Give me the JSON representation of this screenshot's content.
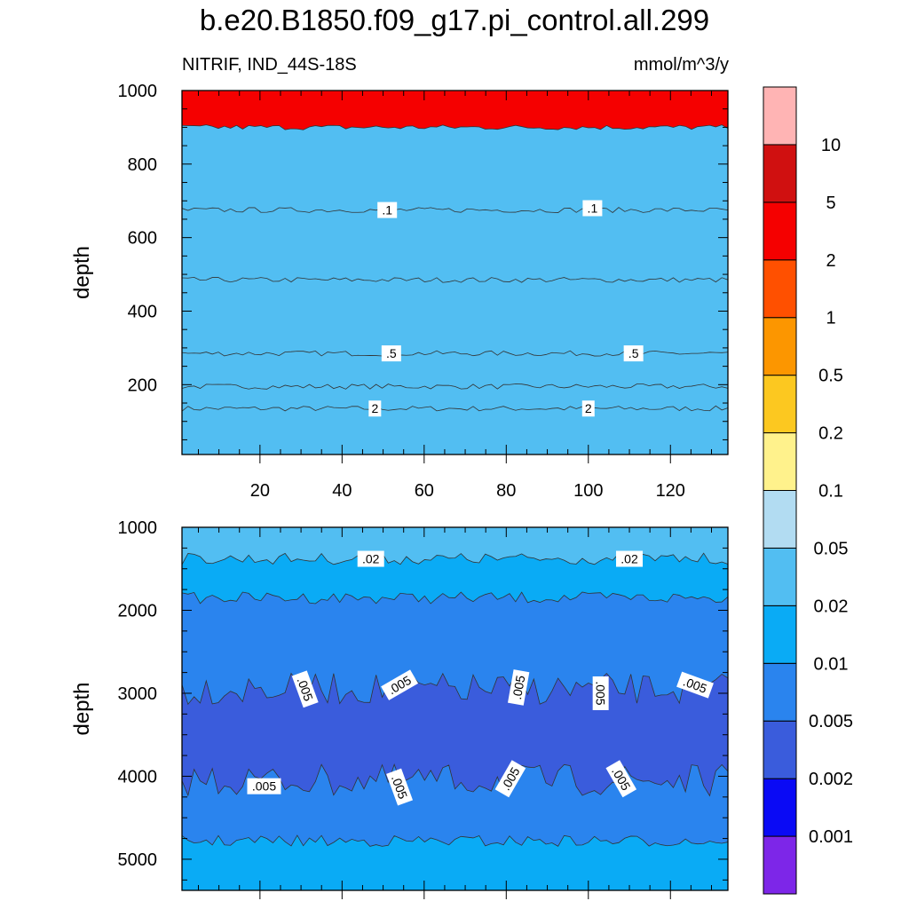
{
  "title": "b.e20.B1850.f09_g17.pi_control.all.299",
  "subtitle_left": "NITRIF, IND_44S-18S",
  "subtitle_right": "mmol/m^3/y",
  "colorbar": {
    "colors": [
      "#7d26e8",
      "#0a0af5",
      "#3a5cdc",
      "#2a84ee",
      "#0aabf5",
      "#52bef2",
      "#b2dcf2",
      "#fff28c",
      "#fcc820",
      "#fc9600",
      "#ff5000",
      "#f50000",
      "#d01010",
      "#ffb4b4"
    ],
    "labels": [
      "0.001",
      "0.002",
      "0.005",
      "0.01",
      "0.02",
      "0.05",
      "0.1",
      "0.2",
      "0.5",
      "1",
      "2",
      "5",
      "10"
    ]
  },
  "chart_data": [
    {
      "type": "heatmap",
      "panel": "upper",
      "ylabel": "depth",
      "xlim": [
        1,
        134
      ],
      "ylim": [
        1000,
        10
      ],
      "xticks": [
        20,
        40,
        60,
        80,
        100,
        120
      ],
      "xtick_labels": [
        "20",
        "40",
        "60",
        "80",
        "100",
        "120"
      ],
      "yticks": [
        200,
        400,
        600,
        800,
        1000
      ],
      "ytick_labels": [
        "200",
        "400",
        "600",
        "800",
        "1000"
      ],
      "bands": [
        {
          "from": 10,
          "to": 135,
          "color": "#f50000"
        },
        {
          "from": 135,
          "to": 195,
          "color": "#ff5000"
        },
        {
          "from": 195,
          "to": 285,
          "color": "#fc9600"
        },
        {
          "from": 285,
          "to": 485,
          "color": "#fcc820"
        },
        {
          "from": 485,
          "to": 675,
          "color": "#fff28c"
        },
        {
          "from": 675,
          "to": 900,
          "color": "#b2dcf2"
        },
        {
          "from": 900,
          "to": 1000,
          "color": "#52bef2"
        }
      ],
      "contour_labels": [
        {
          "text": "2",
          "x": 48,
          "y": 135
        },
        {
          "text": "2",
          "x": 100,
          "y": 135
        },
        {
          "text": ".5",
          "x": 52,
          "y": 285
        },
        {
          "text": ".5",
          "x": 111,
          "y": 285
        },
        {
          "text": ".1",
          "x": 51,
          "y": 675
        },
        {
          "text": ".1",
          "x": 101,
          "y": 680
        }
      ]
    },
    {
      "type": "heatmap",
      "panel": "lower",
      "ylabel": "depth",
      "xlim": [
        1,
        134
      ],
      "ylim": [
        1000,
        5375
      ],
      "yticks": [
        1000,
        2000,
        3000,
        4000,
        5000
      ],
      "ytick_labels": [
        "1000",
        "2000",
        "3000",
        "4000",
        "5000"
      ],
      "bands": [
        {
          "from": 1000,
          "to": 1380,
          "color": "#52bef2"
        },
        {
          "from": 1380,
          "to": 1850,
          "color": "#0aabf5"
        },
        {
          "from": 1850,
          "to": 2950,
          "color": "#2a84ee"
        },
        {
          "from": 2950,
          "to": 4050,
          "color": "#3a5cdc"
        },
        {
          "from": 4050,
          "to": 4780,
          "color": "#2a84ee"
        },
        {
          "from": 4780,
          "to": 5375,
          "color": "#0aabf5"
        }
      ],
      "contour_labels": [
        {
          "text": ".02",
          "x": 47,
          "y": 1380
        },
        {
          "text": ".02",
          "x": 110,
          "y": 1380
        },
        {
          "text": ".005",
          "x": 31,
          "y": 2950,
          "rot": 70
        },
        {
          "text": ".005",
          "x": 54,
          "y": 2900,
          "rot": -30
        },
        {
          "text": ".005",
          "x": 83,
          "y": 2930,
          "rot": -80
        },
        {
          "text": ".005",
          "x": 103,
          "y": 3000,
          "rot": 90
        },
        {
          "text": ".005",
          "x": 126,
          "y": 2900,
          "rot": 20
        },
        {
          "text": ".005",
          "x": 21,
          "y": 4120
        },
        {
          "text": ".005",
          "x": 54,
          "y": 4130,
          "rot": 70
        },
        {
          "text": ".005",
          "x": 81,
          "y": 4030,
          "rot": -60
        },
        {
          "text": ".005",
          "x": 108,
          "y": 4030,
          "rot": 60
        }
      ]
    }
  ]
}
